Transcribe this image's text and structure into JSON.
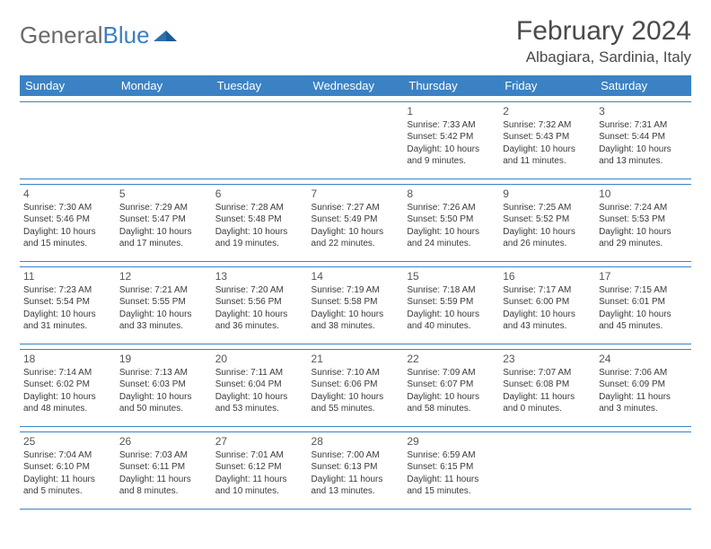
{
  "logo": {
    "text1": "General",
    "text2": "Blue"
  },
  "title": "February 2024",
  "location": "Albagiara, Sardinia, Italy",
  "colors": {
    "header_bg": "#3b82c4",
    "header_fg": "#ffffff",
    "border": "#3b82c4",
    "text": "#3a3a3a"
  },
  "dayHeaders": [
    "Sunday",
    "Monday",
    "Tuesday",
    "Wednesday",
    "Thursday",
    "Friday",
    "Saturday"
  ],
  "weeks": [
    [
      null,
      null,
      null,
      null,
      {
        "n": "1",
        "sr": "Sunrise: 7:33 AM",
        "ss": "Sunset: 5:42 PM",
        "d1": "Daylight: 10 hours",
        "d2": "and 9 minutes."
      },
      {
        "n": "2",
        "sr": "Sunrise: 7:32 AM",
        "ss": "Sunset: 5:43 PM",
        "d1": "Daylight: 10 hours",
        "d2": "and 11 minutes."
      },
      {
        "n": "3",
        "sr": "Sunrise: 7:31 AM",
        "ss": "Sunset: 5:44 PM",
        "d1": "Daylight: 10 hours",
        "d2": "and 13 minutes."
      }
    ],
    [
      {
        "n": "4",
        "sr": "Sunrise: 7:30 AM",
        "ss": "Sunset: 5:46 PM",
        "d1": "Daylight: 10 hours",
        "d2": "and 15 minutes."
      },
      {
        "n": "5",
        "sr": "Sunrise: 7:29 AM",
        "ss": "Sunset: 5:47 PM",
        "d1": "Daylight: 10 hours",
        "d2": "and 17 minutes."
      },
      {
        "n": "6",
        "sr": "Sunrise: 7:28 AM",
        "ss": "Sunset: 5:48 PM",
        "d1": "Daylight: 10 hours",
        "d2": "and 19 minutes."
      },
      {
        "n": "7",
        "sr": "Sunrise: 7:27 AM",
        "ss": "Sunset: 5:49 PM",
        "d1": "Daylight: 10 hours",
        "d2": "and 22 minutes."
      },
      {
        "n": "8",
        "sr": "Sunrise: 7:26 AM",
        "ss": "Sunset: 5:50 PM",
        "d1": "Daylight: 10 hours",
        "d2": "and 24 minutes."
      },
      {
        "n": "9",
        "sr": "Sunrise: 7:25 AM",
        "ss": "Sunset: 5:52 PM",
        "d1": "Daylight: 10 hours",
        "d2": "and 26 minutes."
      },
      {
        "n": "10",
        "sr": "Sunrise: 7:24 AM",
        "ss": "Sunset: 5:53 PM",
        "d1": "Daylight: 10 hours",
        "d2": "and 29 minutes."
      }
    ],
    [
      {
        "n": "11",
        "sr": "Sunrise: 7:23 AM",
        "ss": "Sunset: 5:54 PM",
        "d1": "Daylight: 10 hours",
        "d2": "and 31 minutes."
      },
      {
        "n": "12",
        "sr": "Sunrise: 7:21 AM",
        "ss": "Sunset: 5:55 PM",
        "d1": "Daylight: 10 hours",
        "d2": "and 33 minutes."
      },
      {
        "n": "13",
        "sr": "Sunrise: 7:20 AM",
        "ss": "Sunset: 5:56 PM",
        "d1": "Daylight: 10 hours",
        "d2": "and 36 minutes."
      },
      {
        "n": "14",
        "sr": "Sunrise: 7:19 AM",
        "ss": "Sunset: 5:58 PM",
        "d1": "Daylight: 10 hours",
        "d2": "and 38 minutes."
      },
      {
        "n": "15",
        "sr": "Sunrise: 7:18 AM",
        "ss": "Sunset: 5:59 PM",
        "d1": "Daylight: 10 hours",
        "d2": "and 40 minutes."
      },
      {
        "n": "16",
        "sr": "Sunrise: 7:17 AM",
        "ss": "Sunset: 6:00 PM",
        "d1": "Daylight: 10 hours",
        "d2": "and 43 minutes."
      },
      {
        "n": "17",
        "sr": "Sunrise: 7:15 AM",
        "ss": "Sunset: 6:01 PM",
        "d1": "Daylight: 10 hours",
        "d2": "and 45 minutes."
      }
    ],
    [
      {
        "n": "18",
        "sr": "Sunrise: 7:14 AM",
        "ss": "Sunset: 6:02 PM",
        "d1": "Daylight: 10 hours",
        "d2": "and 48 minutes."
      },
      {
        "n": "19",
        "sr": "Sunrise: 7:13 AM",
        "ss": "Sunset: 6:03 PM",
        "d1": "Daylight: 10 hours",
        "d2": "and 50 minutes."
      },
      {
        "n": "20",
        "sr": "Sunrise: 7:11 AM",
        "ss": "Sunset: 6:04 PM",
        "d1": "Daylight: 10 hours",
        "d2": "and 53 minutes."
      },
      {
        "n": "21",
        "sr": "Sunrise: 7:10 AM",
        "ss": "Sunset: 6:06 PM",
        "d1": "Daylight: 10 hours",
        "d2": "and 55 minutes."
      },
      {
        "n": "22",
        "sr": "Sunrise: 7:09 AM",
        "ss": "Sunset: 6:07 PM",
        "d1": "Daylight: 10 hours",
        "d2": "and 58 minutes."
      },
      {
        "n": "23",
        "sr": "Sunrise: 7:07 AM",
        "ss": "Sunset: 6:08 PM",
        "d1": "Daylight: 11 hours",
        "d2": "and 0 minutes."
      },
      {
        "n": "24",
        "sr": "Sunrise: 7:06 AM",
        "ss": "Sunset: 6:09 PM",
        "d1": "Daylight: 11 hours",
        "d2": "and 3 minutes."
      }
    ],
    [
      {
        "n": "25",
        "sr": "Sunrise: 7:04 AM",
        "ss": "Sunset: 6:10 PM",
        "d1": "Daylight: 11 hours",
        "d2": "and 5 minutes."
      },
      {
        "n": "26",
        "sr": "Sunrise: 7:03 AM",
        "ss": "Sunset: 6:11 PM",
        "d1": "Daylight: 11 hours",
        "d2": "and 8 minutes."
      },
      {
        "n": "27",
        "sr": "Sunrise: 7:01 AM",
        "ss": "Sunset: 6:12 PM",
        "d1": "Daylight: 11 hours",
        "d2": "and 10 minutes."
      },
      {
        "n": "28",
        "sr": "Sunrise: 7:00 AM",
        "ss": "Sunset: 6:13 PM",
        "d1": "Daylight: 11 hours",
        "d2": "and 13 minutes."
      },
      {
        "n": "29",
        "sr": "Sunrise: 6:59 AM",
        "ss": "Sunset: 6:15 PM",
        "d1": "Daylight: 11 hours",
        "d2": "and 15 minutes."
      },
      null,
      null
    ]
  ]
}
